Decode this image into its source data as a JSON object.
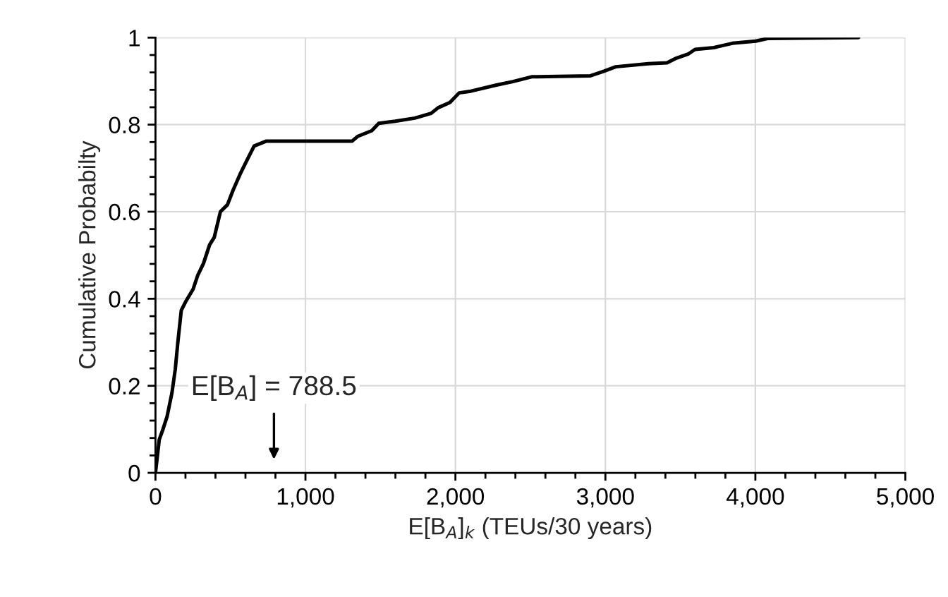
{
  "chart_data": {
    "type": "line",
    "xlabel": "E[B$_{A}$]$_{k}$ (TEUs/30 years)",
    "ylabel": "Cumulative Probabilty",
    "x": [
      0,
      25,
      47,
      78,
      110,
      132,
      150,
      172,
      204,
      251,
      282,
      320,
      361,
      392,
      433,
      480,
      517,
      564,
      611,
      658,
      737,
      1310,
      1348,
      1442,
      1489,
      1599,
      1729,
      1838,
      1885,
      1963,
      2025,
      2103,
      2274,
      2383,
      2508,
      2897,
      2991,
      3069,
      3287,
      3411,
      3474,
      3551,
      3598,
      3723,
      3847,
      4003,
      4081,
      4688
    ],
    "series": [
      {
        "color": "#000000",
        "values": [
          0,
          0.076,
          0.097,
          0.13,
          0.184,
          0.238,
          0.303,
          0.373,
          0.395,
          0.422,
          0.454,
          0.481,
          0.524,
          0.541,
          0.6,
          0.616,
          0.649,
          0.686,
          0.719,
          0.751,
          0.762,
          0.762,
          0.773,
          0.786,
          0.803,
          0.808,
          0.815,
          0.826,
          0.839,
          0.851,
          0.873,
          0.877,
          0.891,
          0.899,
          0.91,
          0.912,
          0.923,
          0.933,
          0.94,
          0.942,
          0.953,
          0.962,
          0.973,
          0.977,
          0.987,
          0.992,
          0.998,
          1.0
        ]
      }
    ],
    "xlim": [
      0,
      5000
    ],
    "xticks": [
      {
        "value": 0,
        "label": "0"
      },
      {
        "value": 200,
        "label": null
      },
      {
        "value": 400,
        "label": null
      },
      {
        "value": 600,
        "label": null
      },
      {
        "value": 800,
        "label": null
      },
      {
        "value": 1000,
        "label": "1,000"
      },
      {
        "value": 1200,
        "label": null
      },
      {
        "value": 1400,
        "label": null
      },
      {
        "value": 1600,
        "label": null
      },
      {
        "value": 1800,
        "label": null
      },
      {
        "value": 2000,
        "label": "2,000"
      },
      {
        "value": 2200,
        "label": null
      },
      {
        "value": 2400,
        "label": null
      },
      {
        "value": 2600,
        "label": null
      },
      {
        "value": 2800,
        "label": null
      },
      {
        "value": 3000,
        "label": "3,000"
      },
      {
        "value": 3200,
        "label": null
      },
      {
        "value": 3400,
        "label": null
      },
      {
        "value": 3600,
        "label": null
      },
      {
        "value": 3800,
        "label": null
      },
      {
        "value": 4000,
        "label": "4,000"
      },
      {
        "value": 4200,
        "label": null
      },
      {
        "value": 4400,
        "label": null
      },
      {
        "value": 4600,
        "label": null
      },
      {
        "value": 4800,
        "label": null
      },
      {
        "value": 5000,
        "label": "5,000"
      }
    ],
    "ylim": [
      0,
      1
    ],
    "yticks": [
      0,
      {
        "value": 0.04,
        "label": null
      },
      {
        "value": 0.08,
        "label": null
      },
      {
        "value": 0.12,
        "label": null
      },
      {
        "value": 0.16,
        "label": null
      },
      0.2,
      {
        "value": 0.24,
        "label": null
      },
      {
        "value": 0.28,
        "label": null
      },
      {
        "value": 0.32,
        "label": null
      },
      {
        "value": 0.36,
        "label": null
      },
      0.4,
      {
        "value": 0.44,
        "label": null
      },
      {
        "value": 0.48,
        "label": null
      },
      {
        "value": 0.52,
        "label": null
      },
      {
        "value": 0.56,
        "label": null
      },
      0.6,
      {
        "value": 0.64,
        "label": null
      },
      {
        "value": 0.68,
        "label": null
      },
      {
        "value": 0.72,
        "label": null
      },
      {
        "value": 0.76,
        "label": null
      },
      0.8,
      {
        "value": 0.84,
        "label": null
      },
      {
        "value": 0.88,
        "label": null
      },
      {
        "value": 0.92,
        "label": null
      },
      {
        "value": 0.96,
        "label": null
      },
      1
    ],
    "grid": true,
    "marker": "none",
    "line_style": "solid",
    "annotations": [
      "E[B$_{A}$] = 788.5"
    ]
  }
}
